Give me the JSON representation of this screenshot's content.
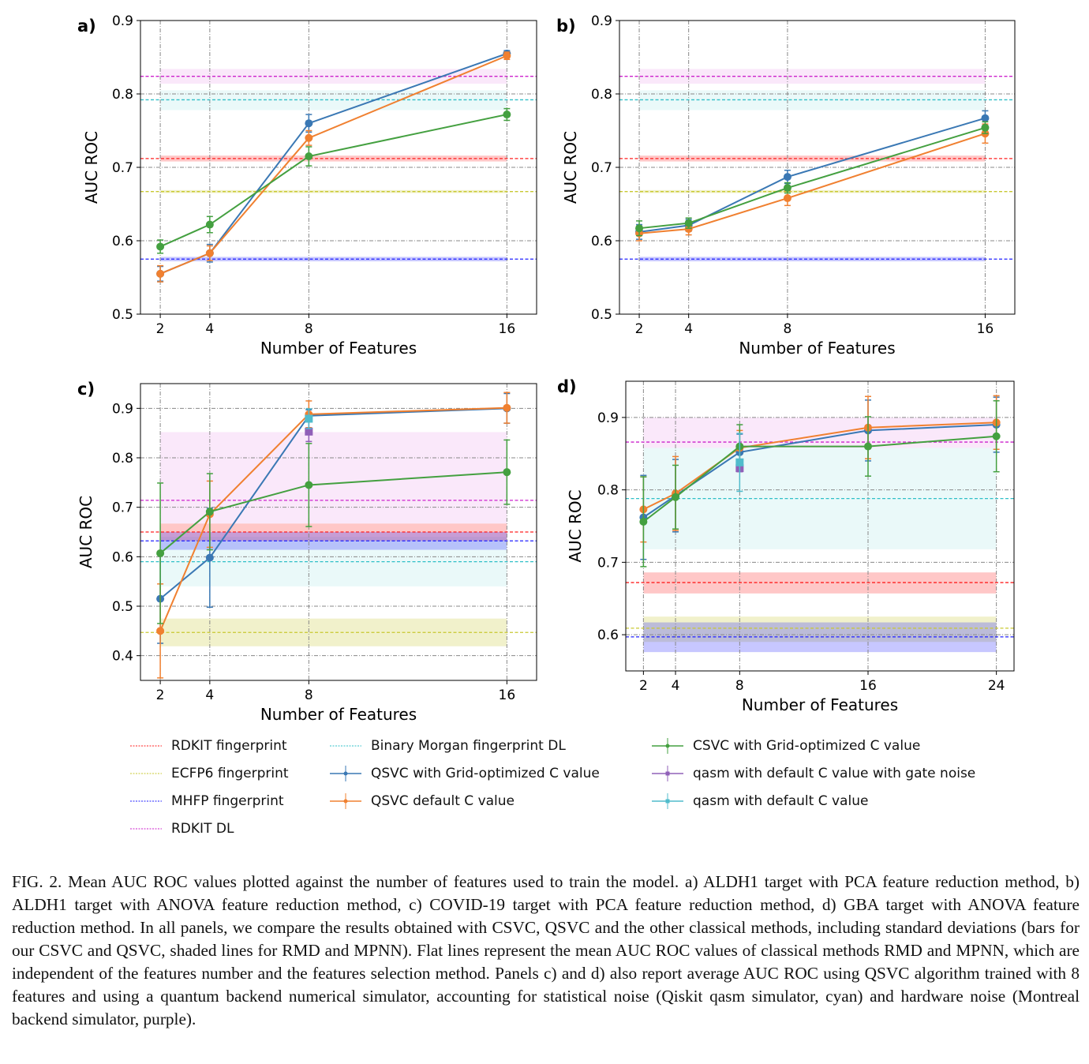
{
  "chart_data": [
    {
      "panel": "a)",
      "type": "line",
      "ylabel": "AUC ROC",
      "xlabel": "Number of Features",
      "x": [
        2,
        4,
        8,
        16
      ],
      "xticks": [
        "2",
        "4",
        "8",
        "16"
      ],
      "xlim": [
        1.2,
        17.2
      ],
      "ylim": [
        0.5,
        0.9
      ],
      "yticks": [
        "0.5",
        "0.6",
        "0.7",
        "0.8",
        "0.9"
      ],
      "grid": true,
      "baselines": [
        {
          "name": "RDKIT DL",
          "mean": 0.824,
          "band": [
            0.814,
            0.834
          ]
        },
        {
          "name": "Binary Morgan fingerprint DL",
          "mean": 0.792,
          "band": [
            0.778,
            0.805
          ]
        },
        {
          "name": "RDKIT fingerprint",
          "mean": 0.712,
          "band": [
            0.708,
            0.716
          ]
        },
        {
          "name": "ECFP6 fingerprint",
          "mean": 0.667,
          "band": [
            0.665,
            0.669
          ]
        },
        {
          "name": "MHFP fingerprint",
          "mean": 0.575,
          "band": [
            0.572,
            0.578
          ]
        }
      ],
      "series": [
        {
          "name": "QSVC with Grid-optimized C value",
          "values": [
            0.555,
            0.583,
            0.76,
            0.855
          ],
          "err": [
            0.01,
            0.012,
            0.012,
            0.004
          ]
        },
        {
          "name": "QSVC default C value",
          "values": [
            0.555,
            0.583,
            0.74,
            0.852
          ],
          "err": [
            0.011,
            0.01,
            0.01,
            0.005
          ]
        },
        {
          "name": "CSVC with Grid-optimized C value",
          "values": [
            0.592,
            0.622,
            0.715,
            0.772
          ],
          "err": [
            0.009,
            0.011,
            0.013,
            0.008
          ]
        }
      ],
      "points": []
    },
    {
      "panel": "b)",
      "type": "line",
      "ylabel": "AUC ROC",
      "xlabel": "Number of Features",
      "x": [
        2,
        4,
        8,
        16
      ],
      "xticks": [
        "2",
        "4",
        "8",
        "16"
      ],
      "xlim": [
        1.2,
        17.2
      ],
      "ylim": [
        0.5,
        0.9
      ],
      "yticks": [
        "0.5",
        "0.6",
        "0.7",
        "0.8",
        "0.9"
      ],
      "grid": true,
      "baselines": [
        {
          "name": "RDKIT DL",
          "mean": 0.824,
          "band": [
            0.814,
            0.834
          ]
        },
        {
          "name": "Binary Morgan fingerprint DL",
          "mean": 0.792,
          "band": [
            0.778,
            0.805
          ]
        },
        {
          "name": "RDKIT fingerprint",
          "mean": 0.712,
          "band": [
            0.708,
            0.716
          ]
        },
        {
          "name": "ECFP6 fingerprint",
          "mean": 0.667,
          "band": [
            0.665,
            0.669
          ]
        },
        {
          "name": "MHFP fingerprint",
          "mean": 0.575,
          "band": [
            0.572,
            0.578
          ]
        }
      ],
      "series": [
        {
          "name": "QSVC with Grid-optimized C value",
          "values": [
            0.612,
            0.621,
            0.687,
            0.767
          ],
          "err": [
            0.01,
            0.008,
            0.009,
            0.01
          ]
        },
        {
          "name": "QSVC default C value",
          "values": [
            0.61,
            0.616,
            0.658,
            0.746
          ],
          "err": [
            0.01,
            0.008,
            0.01,
            0.013
          ]
        },
        {
          "name": "CSVC with Grid-optimized C value",
          "values": [
            0.617,
            0.624,
            0.672,
            0.754
          ],
          "err": [
            0.01,
            0.007,
            0.007,
            0.008
          ]
        }
      ],
      "points": []
    },
    {
      "panel": "c)",
      "type": "line",
      "ylabel": "AUC ROC",
      "xlabel": "Number of Features",
      "x": [
        2,
        4,
        8,
        16
      ],
      "xticks": [
        "2",
        "4",
        "8",
        "16"
      ],
      "xlim": [
        1.2,
        17.2
      ],
      "ylim": [
        0.35,
        0.95
      ],
      "yticks": [
        "0.4",
        "0.5",
        "0.6",
        "0.7",
        "0.8",
        "0.9"
      ],
      "grid": true,
      "baselines": [
        {
          "name": "RDKIT DL",
          "mean": 0.714,
          "band": [
            0.667,
            0.852
          ]
        },
        {
          "name": "Binary Morgan fingerprint DL",
          "mean": 0.59,
          "band": [
            0.54,
            0.64
          ]
        },
        {
          "name": "RDKIT fingerprint",
          "mean": 0.65,
          "band": [
            0.632,
            0.667
          ]
        },
        {
          "name": "MHFP fingerprint",
          "mean": 0.632,
          "band": [
            0.614,
            0.65
          ]
        },
        {
          "name": "ECFP6 fingerprint",
          "mean": 0.447,
          "band": [
            0.419,
            0.475
          ]
        }
      ],
      "series": [
        {
          "name": "QSVC with Grid-optimized C value",
          "values": [
            0.515,
            0.598,
            0.885,
            0.9
          ],
          "err": [
            0.09,
            0.1,
            0.012,
            0.03
          ]
        },
        {
          "name": "QSVC default C value",
          "values": [
            0.45,
            0.686,
            0.888,
            0.901
          ],
          "err": [
            0.095,
            0.067,
            0.027,
            0.031
          ]
        },
        {
          "name": "CSVC with Grid-optimized C value",
          "values": [
            0.607,
            0.691,
            0.745,
            0.771
          ],
          "err": [
            0.142,
            0.077,
            0.084,
            0.065
          ]
        }
      ],
      "points": [
        {
          "name": "qasm with default C value with gate noise",
          "x": 8,
          "value": 0.853,
          "err": 0.02
        },
        {
          "name": "qasm with default C value",
          "x": 8,
          "value": 0.879,
          "err": 0.02
        }
      ]
    },
    {
      "panel": "d)",
      "type": "line",
      "ylabel": "AUC ROC",
      "xlabel": "Number of Features",
      "x": [
        2,
        4,
        8,
        16,
        24
      ],
      "xticks": [
        "2",
        "4",
        "8",
        "16",
        "24"
      ],
      "xlim": [
        0.9,
        25.1
      ],
      "ylim": [
        0.55,
        0.95
      ],
      "yticks": [
        "0.6",
        "0.7",
        "0.8",
        "0.9"
      ],
      "grid": true,
      "baselines": [
        {
          "name": "RDKIT DL",
          "mean": 0.866,
          "band": [
            0.858,
            0.9
          ]
        },
        {
          "name": "Binary Morgan fingerprint DL",
          "mean": 0.788,
          "band": [
            0.718,
            0.858
          ]
        },
        {
          "name": "RDKIT fingerprint",
          "mean": 0.672,
          "band": [
            0.657,
            0.686
          ]
        },
        {
          "name": "ECFP6 fingerprint",
          "mean": 0.609,
          "band": [
            0.59,
            0.625
          ]
        },
        {
          "name": "MHFP fingerprint",
          "mean": 0.597,
          "band": [
            0.576,
            0.617
          ]
        }
      ],
      "series": [
        {
          "name": "QSVC with Grid-optimized C value",
          "values": [
            0.762,
            0.792,
            0.852,
            0.882,
            0.89
          ],
          "err": [
            0.058,
            0.05,
            0.025,
            0.042,
            0.038
          ]
        },
        {
          "name": "QSVC default C value",
          "values": [
            0.773,
            0.795,
            0.858,
            0.886,
            0.893
          ],
          "err": [
            0.045,
            0.051,
            0.024,
            0.043,
            0.037
          ]
        },
        {
          "name": "CSVC with Grid-optimized C value",
          "values": [
            0.756,
            0.79,
            0.86,
            0.86,
            0.874
          ],
          "err": [
            0.062,
            0.044,
            0.03,
            0.041,
            0.049
          ]
        }
      ],
      "points": [
        {
          "name": "qasm with default C value with gate noise",
          "x": 8,
          "value": 0.83,
          "err": 0.005
        },
        {
          "name": "qasm with default C value",
          "x": 8,
          "value": 0.838,
          "err": 0.04
        }
      ]
    }
  ],
  "colors": {
    "RDKIT fingerprint": "#ff2020",
    "ECFP6 fingerprint": "#c8c830",
    "MHFP fingerprint": "#2020ff",
    "RDKIT DL": "#cc22cc",
    "Binary Morgan fingerprint DL": "#30c0c8",
    "QSVC with Grid-optimized C value": "#3a78b4",
    "QSVC default C value": "#f08030",
    "CSVC with Grid-optimized C value": "#44a040",
    "qasm with default C value with gate noise": "#9060b8",
    "qasm with default C value": "#50bccc",
    "grid": "#888888"
  },
  "legend": {
    "items": [
      {
        "label": "RDKIT fingerprint",
        "kind": "dashed"
      },
      {
        "label": "ECFP6 fingerprint",
        "kind": "dashed"
      },
      {
        "label": "MHFP fingerprint",
        "kind": "dashed"
      },
      {
        "label": "RDKIT DL",
        "kind": "dashed"
      },
      {
        "label": "Binary Morgan fingerprint DL",
        "kind": "dashed"
      },
      {
        "label": "QSVC with Grid-optimized C value",
        "kind": "errorbar"
      },
      {
        "label": "QSVC default C value",
        "kind": "errorbar"
      },
      {
        "label": "CSVC with Grid-optimized C value",
        "kind": "errorbar"
      },
      {
        "label": "qasm with default C value with gate noise",
        "kind": "errorbar"
      },
      {
        "label": "qasm with default C value",
        "kind": "errorbar"
      }
    ]
  },
  "caption": "FIG. 2. Mean AUC ROC values plotted against the number of features used to train the model. a) ALDH1 target with PCA feature reduction method, b) ALDH1 target with ANOVA feature reduction method, c) COVID-19 target with PCA feature reduction method, d) GBA target with ANOVA feature reduction method.  In all panels, we compare the results obtained with CSVC, QSVC and the other classical methods, including standard deviations (bars for our CSVC and QSVC, shaded lines for RMD and MPNN). Flat lines represent the mean AUC ROC values of classical methods RMD and MPNN, which are independent of the features number and the features selection method. Panels c) and d) also report average AUC ROC using QSVC algorithm trained with 8 features and using a quantum backend numerical simulator, accounting for statistical noise (Qiskit qasm simulator, cyan) and hardware noise (Montreal backend simulator, purple)."
}
